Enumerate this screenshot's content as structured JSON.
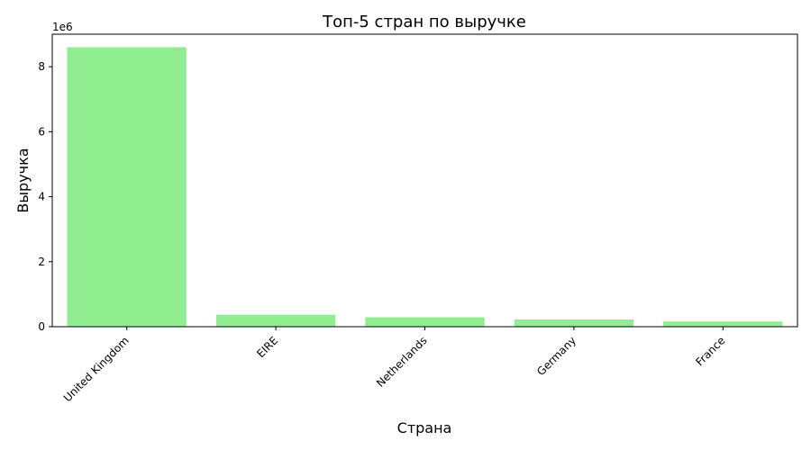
{
  "chart_data": {
    "type": "bar",
    "title": "Топ-5 стран по выручке",
    "xlabel": "Страна",
    "ylabel": "Выручка",
    "offset_label": "1e6",
    "categories": [
      "United Kingdom",
      "EIRE",
      "Netherlands",
      "Germany",
      "France"
    ],
    "values": [
      8600000,
      370000,
      290000,
      220000,
      160000
    ],
    "ylim": [
      0,
      9000000
    ],
    "yticks": [
      0,
      2000000,
      4000000,
      6000000,
      8000000
    ],
    "ytick_labels": [
      "0",
      "2",
      "4",
      "6",
      "8"
    ],
    "bar_color": "#90ee90",
    "grid": false,
    "legend": "none"
  }
}
